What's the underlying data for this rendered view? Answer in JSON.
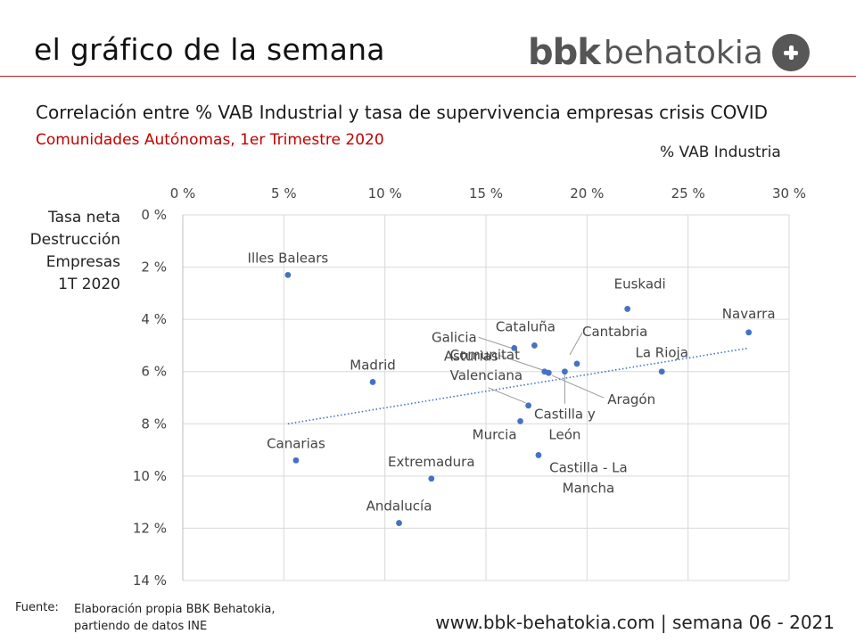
{
  "header": {
    "title": "el gráfico de la semana",
    "brand_bbk": "bbk",
    "brand_name": "behatokia",
    "brand_color": "#555555",
    "rule_color": "#b22222"
  },
  "subtitle": {
    "main": "Correlación entre % VAB Industrial y tasa de supervivencia empresas crisis COVID",
    "sub": "Comunidades Autónomas, 1er Trimestre 2020",
    "sub_color": "#c00000"
  },
  "chart_data": {
    "type": "scatter",
    "xlabel": "% VAB Industria",
    "ylabel": "Tasa neta Destrucción Empresas 1T 2020",
    "xlim": [
      0,
      30
    ],
    "ylim": [
      0,
      14
    ],
    "y_inverted": true,
    "x_axis_position": "top",
    "x_ticks": [
      "0 %",
      "5 %",
      "10 %",
      "15 %",
      "20 %",
      "25 %",
      "30 %"
    ],
    "y_ticks": [
      "0 %",
      "2 %",
      "4 %",
      "6 %",
      "8 %",
      "10 %",
      "12 %",
      "14 %"
    ],
    "grid": true,
    "point_color": "#4472c4",
    "trendline": {
      "style": "dotted",
      "from": [
        5.2,
        8.0
      ],
      "to": [
        28.0,
        5.1
      ]
    },
    "points": [
      {
        "name": "Illes Balears",
        "x": 5.2,
        "y": 2.3
      },
      {
        "name": "Euskadi",
        "x": 22.0,
        "y": 3.6
      },
      {
        "name": "Navarra",
        "x": 28.0,
        "y": 4.5
      },
      {
        "name": "Cataluña",
        "x": 17.4,
        "y": 5.0
      },
      {
        "name": "Galicia",
        "x": 16.4,
        "y": 5.1
      },
      {
        "name": "Cantabria",
        "x": 19.5,
        "y": 5.7
      },
      {
        "name": "Asturias",
        "x": 17.9,
        "y": 6.0
      },
      {
        "name": "Aragón",
        "x": 18.1,
        "y": 6.05
      },
      {
        "name": "Castilla y León",
        "x": 18.9,
        "y": 6.0
      },
      {
        "name": "La Rioja",
        "x": 23.7,
        "y": 6.0
      },
      {
        "name": "Madrid",
        "x": 9.4,
        "y": 6.4
      },
      {
        "name": "Comunitat Valenciana",
        "x": 17.1,
        "y": 7.3
      },
      {
        "name": "Murcia",
        "x": 16.7,
        "y": 7.9
      },
      {
        "name": "Canarias",
        "x": 5.6,
        "y": 9.4
      },
      {
        "name": "Castilla - La Mancha",
        "x": 17.6,
        "y": 9.2
      },
      {
        "name": "Extremadura",
        "x": 12.3,
        "y": 10.1
      },
      {
        "name": "Andalucía",
        "x": 10.7,
        "y": 11.8
      }
    ]
  },
  "footer": {
    "source_label": "Fuente:",
    "source_line1": "Elaboración propia BBK Behatokia,",
    "source_line2": "partiendo de datos INE",
    "site": "www.bbk-behatokia.com | semana 06 - 2021"
  }
}
